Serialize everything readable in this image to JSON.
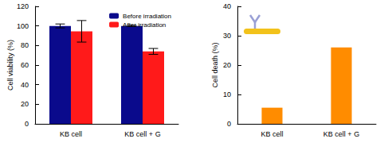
{
  "chart_data": [
    {
      "type": "bar",
      "categories": [
        "KB cell",
        "KB cell + G"
      ],
      "ylabel": "Cell viability (%)",
      "ylim": [
        0,
        120
      ],
      "yticks": [
        0,
        20,
        40,
        60,
        80,
        100,
        120
      ],
      "legend": "upper right",
      "series": [
        {
          "name": "Before irradiation",
          "color": "#0a0a8c",
          "values": [
            100,
            100
          ],
          "errors": [
            2,
            0.5
          ]
        },
        {
          "name": "After irradiation",
          "color": "#ff1a1a",
          "values": [
            94.5,
            74
          ],
          "errors": [
            11,
            3
          ]
        }
      ]
    },
    {
      "type": "bar",
      "categories": [
        "KB cell",
        "KB cell + G"
      ],
      "ylabel": "Cell death (%)",
      "ylim": [
        0,
        40
      ],
      "yticks": [
        0,
        10,
        20,
        30,
        40
      ],
      "color": "#ff8c00",
      "values": [
        5.5,
        26
      ]
    }
  ]
}
